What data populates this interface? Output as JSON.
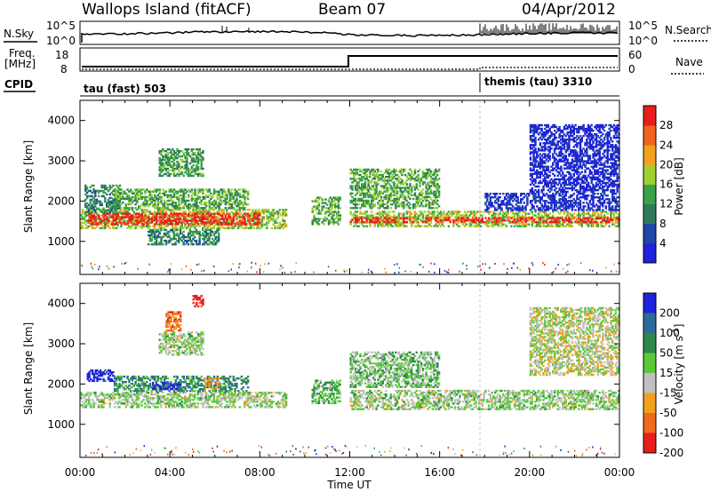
{
  "header": {
    "station": "Wallops Island (fitACF)",
    "beam": "Beam 07",
    "date": "04/Apr/2012"
  },
  "top_panels": {
    "nsky_label": "N.Sky",
    "nsky_ticks": [
      "10^5",
      "10^0"
    ],
    "nsearch_label": "N.Search",
    "freq_label_top": "Freq.",
    "freq_label_unit": "[MHz]",
    "freq_ticks": [
      "18",
      "8"
    ],
    "nave_label": "Nave",
    "nave_ticks": [
      "60",
      "0"
    ],
    "cpid_label": "CPID",
    "cpid_left": "tau (fast) 503",
    "cpid_right": "themis (tau) 3310"
  },
  "colors": {
    "power": [
      "#1e22d8",
      "#1f46a8",
      "#2e7a5a",
      "#3aa24a",
      "#9ed12e",
      "#f0a21e",
      "#f0641e",
      "#e81e1e"
    ],
    "velocity": [
      "#1e22d8",
      "#2e6a9a",
      "#2e8a4a",
      "#5ac83a",
      "#c0c0c0",
      "#f0a21e",
      "#f06a1e",
      "#e81e1e"
    ]
  },
  "chart_data": [
    {
      "type": "heatmap",
      "name_on_chart": "Power [dB]",
      "ylabel": "Slant Range [km]",
      "xlabel": "Time UT",
      "x_ticks": [
        "00:00",
        "04:00",
        "08:00",
        "12:00",
        "16:00",
        "20:00",
        "00:00"
      ],
      "y_ticks": [
        1000,
        2000,
        3000,
        4000
      ],
      "ylim": [
        180,
        4500
      ],
      "xlim_hours": [
        0,
        24
      ],
      "colorbar_ticks": [
        4,
        8,
        12,
        16,
        20,
        24,
        28
      ],
      "colorbar_label": "Power [dB]",
      "bands": [
        {
          "t0": 0.0,
          "t1": 9.2,
          "r0": 1300,
          "r1": 1800,
          "level": 0.55
        },
        {
          "t0": 0.3,
          "t1": 8.0,
          "r0": 1400,
          "r1": 1700,
          "level": 0.95
        },
        {
          "t0": 0.2,
          "t1": 1.8,
          "r0": 1700,
          "r1": 2400,
          "level": 0.35
        },
        {
          "t0": 1.5,
          "t1": 7.5,
          "r0": 1800,
          "r1": 2300,
          "level": 0.45
        },
        {
          "t0": 3.5,
          "t1": 5.5,
          "r0": 2600,
          "r1": 3300,
          "level": 0.4
        },
        {
          "t0": 3.0,
          "t1": 6.2,
          "r0": 900,
          "r1": 1300,
          "level": 0.35
        },
        {
          "t0": 10.3,
          "t1": 11.6,
          "r0": 1400,
          "r1": 2100,
          "level": 0.45
        },
        {
          "t0": 12.0,
          "t1": 24.0,
          "r0": 1350,
          "r1": 1750,
          "level": 0.55
        },
        {
          "t0": 12.0,
          "t1": 24.0,
          "r0": 1450,
          "r1": 1600,
          "level": 0.95
        },
        {
          "t0": 12.0,
          "t1": 16.0,
          "r0": 1800,
          "r1": 2800,
          "level": 0.45
        },
        {
          "t0": 18.0,
          "t1": 24.0,
          "r0": 1750,
          "r1": 2200,
          "level": 0.1
        },
        {
          "t0": 20.0,
          "t1": 24.0,
          "r0": 2200,
          "r1": 3900,
          "level": 0.05
        }
      ]
    },
    {
      "type": "heatmap",
      "name_on_chart": "Velocity [m s-1]",
      "ylabel": "Slant Range [km]",
      "xlabel": "Time UT",
      "x_ticks": [
        "00:00",
        "04:00",
        "08:00",
        "12:00",
        "16:00",
        "20:00",
        "00:00"
      ],
      "y_ticks": [
        1000,
        2000,
        3000,
        4000
      ],
      "ylim": [
        180,
        4500
      ],
      "xlim_hours": [
        0,
        24
      ],
      "colorbar_ticks": [
        200,
        100,
        50,
        15,
        -15,
        -50,
        -100,
        -200
      ],
      "colorbar_label": "Velocity [m s-1]",
      "bands": [
        {
          "t0": 0.0,
          "t1": 9.2,
          "r0": 1400,
          "r1": 1800,
          "level": 0.5
        },
        {
          "t0": 0.3,
          "t1": 1.5,
          "r0": 2050,
          "r1": 2350,
          "level": 0.0
        },
        {
          "t0": 1.5,
          "t1": 7.5,
          "r0": 1800,
          "r1": 2200,
          "level": 0.3
        },
        {
          "t0": 3.2,
          "t1": 4.5,
          "r0": 1850,
          "r1": 2050,
          "level": 0.05
        },
        {
          "t0": 5.5,
          "t1": 6.2,
          "r0": 1850,
          "r1": 2150,
          "level": 0.75
        },
        {
          "t0": 3.5,
          "t1": 5.5,
          "r0": 2700,
          "r1": 3300,
          "level": 0.5
        },
        {
          "t0": 3.8,
          "t1": 4.5,
          "r0": 3300,
          "r1": 3800,
          "level": 0.8
        },
        {
          "t0": 5.0,
          "t1": 5.5,
          "r0": 3900,
          "r1": 4200,
          "level": 1.0
        },
        {
          "t0": 10.3,
          "t1": 11.6,
          "r0": 1500,
          "r1": 2100,
          "level": 0.4
        },
        {
          "t0": 12.0,
          "t1": 24.0,
          "r0": 1350,
          "r1": 1850,
          "level": 0.5
        },
        {
          "t0": 12.0,
          "t1": 16.0,
          "r0": 1900,
          "r1": 2800,
          "level": 0.45
        },
        {
          "t0": 20.0,
          "t1": 24.0,
          "r0": 2200,
          "r1": 3900,
          "level": 0.55
        }
      ]
    }
  ]
}
